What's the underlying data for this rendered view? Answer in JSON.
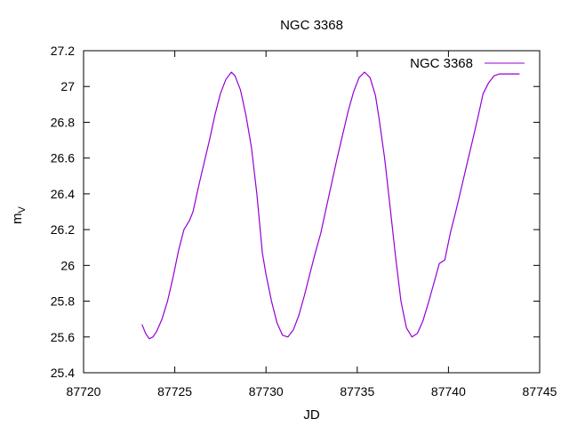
{
  "chart_data": {
    "type": "line",
    "title": "NGC 3368",
    "xlabel": "JD",
    "ylabel_main": "m",
    "ylabel_sub": "V",
    "xlim": [
      87720,
      87745
    ],
    "ylim": [
      25.4,
      27.2
    ],
    "x_ticks": [
      87720,
      87725,
      87730,
      87735,
      87740,
      87745
    ],
    "y_ticks": [
      25.4,
      25.6,
      25.8,
      26,
      26.2,
      26.4,
      26.6,
      26.8,
      27,
      27.2
    ],
    "x_tick_labels": [
      "87720",
      "87725",
      "87730",
      "87735",
      "87740",
      "87745"
    ],
    "y_tick_labels": [
      "25.4",
      "25.6",
      "25.8",
      "26",
      "26.2",
      "26.4",
      "26.6",
      "26.8",
      "27",
      "27.2"
    ],
    "legend_position": "top-right",
    "grid": false,
    "color": "#9400d3",
    "series": [
      {
        "name": "NGC 3368",
        "x": [
          87723.2,
          87723.4,
          87723.6,
          87723.8,
          87724.0,
          87724.3,
          87724.6,
          87724.9,
          87725.2,
          87725.5,
          87725.8,
          87726.0,
          87726.3,
          87726.6,
          87726.9,
          87727.2,
          87727.5,
          87727.8,
          87728.1,
          87728.3,
          87728.6,
          87728.9,
          87729.2,
          87729.5,
          87729.8,
          87730.0,
          87730.3,
          87730.6,
          87730.9,
          87731.2,
          87731.5,
          87731.8,
          87732.1,
          87732.4,
          87732.7,
          87733.0,
          87733.3,
          87733.6,
          87733.9,
          87734.2,
          87734.5,
          87734.8,
          87735.1,
          87735.4,
          87735.7,
          87736.0,
          87736.2,
          87736.5,
          87736.8,
          87737.1,
          87737.4,
          87737.7,
          87738.0,
          87738.3,
          87738.6,
          87738.9,
          87739.2,
          87739.5,
          87739.8,
          87740.1,
          87740.4,
          87740.7,
          87741.0,
          87741.3,
          87741.6,
          87741.9,
          87742.2,
          87742.5,
          87742.8,
          87743.1,
          87743.4,
          87743.7,
          87743.9
        ],
        "y": [
          25.67,
          25.62,
          25.59,
          25.6,
          25.63,
          25.7,
          25.8,
          25.93,
          26.08,
          26.2,
          26.25,
          26.3,
          26.44,
          26.57,
          26.7,
          26.84,
          26.96,
          27.04,
          27.08,
          27.06,
          26.98,
          26.84,
          26.66,
          26.4,
          26.07,
          25.95,
          25.8,
          25.68,
          25.61,
          25.6,
          25.64,
          25.72,
          25.83,
          25.95,
          26.07,
          26.18,
          26.32,
          26.46,
          26.6,
          26.73,
          26.86,
          26.97,
          27.05,
          27.08,
          27.05,
          26.95,
          26.82,
          26.6,
          26.33,
          26.05,
          25.8,
          25.65,
          25.6,
          25.62,
          25.69,
          25.79,
          25.9,
          26.01,
          26.03,
          26.18,
          26.3,
          26.43,
          26.56,
          26.69,
          26.82,
          26.96,
          27.02,
          27.06,
          27.07,
          27.07,
          27.07,
          27.07,
          27.07
        ]
      }
    ]
  }
}
